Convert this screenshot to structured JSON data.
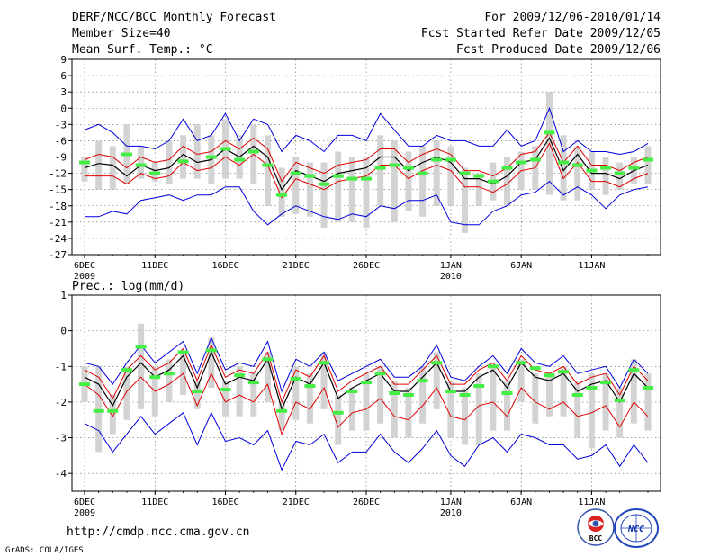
{
  "header": {
    "title": "DERF/NCC/BCC Monthly Forecast",
    "member_size": "Member Size=40",
    "variable": "Mean Surf. Temp.: °C",
    "forecast_period": "For 2009/12/06-2010/01/14",
    "start_ref": "Fcst Started Refer Date 2009/12/05",
    "produced": "Fcst Produced Date 2009/12/06"
  },
  "footer": {
    "url": "http://cmdp.ncc.cma.gov.cn",
    "grads_credit": "GrADS: COLA/IGES",
    "logo_left_text": "BCC",
    "logo_right_text": "NCC"
  },
  "colors": {
    "range_bar": "#d3d3d3",
    "mean_line": "#000000",
    "spread_line": "#e00000",
    "extreme_line": "#0000dd",
    "obs_marker": "#44ee44",
    "grid": "#666666"
  },
  "chart_data": [
    {
      "type": "line",
      "title": "Mean Surf. Temp.: °C",
      "ylabel": "°C",
      "ylim": [
        -27,
        9
      ],
      "yticks": [
        "-27",
        "-24",
        "-21",
        "-18",
        "-15",
        "-12",
        "-9",
        "-6",
        "-3",
        "0",
        "3",
        "6",
        "9"
      ],
      "xlim": [
        0,
        39
      ],
      "xticks": [
        {
          "day": 0,
          "label": "6DEC",
          "sub": "2009"
        },
        {
          "day": 5,
          "label": "11DEC",
          "sub": ""
        },
        {
          "day": 10,
          "label": "16DEC",
          "sub": ""
        },
        {
          "day": 15,
          "label": "21DEC",
          "sub": ""
        },
        {
          "day": 20,
          "label": "26DEC",
          "sub": ""
        },
        {
          "day": 26,
          "label": "1JAN",
          "sub": "2010"
        },
        {
          "day": 31,
          "label": "6JAN",
          "sub": ""
        },
        {
          "day": 36,
          "label": "11JAN",
          "sub": ""
        }
      ],
      "series": [
        {
          "name": "ensemble-mean",
          "values": [
            -11,
            -10.2,
            -10.5,
            -12.5,
            -10.5,
            -11.5,
            -11,
            -8.5,
            -10,
            -9.5,
            -7.5,
            -9,
            -7,
            -9,
            -15,
            -11.5,
            -12.5,
            -13.5,
            -12,
            -11.5,
            -11,
            -9,
            -9,
            -11.5,
            -10,
            -9,
            -10,
            -13,
            -13,
            -14,
            -12.5,
            -10,
            -9.5,
            -5.5,
            -11.5,
            -8.5,
            -12,
            -12,
            -13,
            -11.5,
            -10.5
          ]
        },
        {
          "name": "upper-spread",
          "values": [
            -9.5,
            -8.5,
            -9,
            -11,
            -9,
            -10,
            -9.5,
            -7,
            -8.5,
            -8,
            -6,
            -7.5,
            -5.5,
            -7.5,
            -13.5,
            -10,
            -11,
            -12,
            -10.5,
            -10,
            -9.5,
            -7.5,
            -7.5,
            -10,
            -8.5,
            -7.5,
            -8.5,
            -11.5,
            -11.5,
            -12.5,
            -11,
            -8.5,
            -8,
            -4.5,
            -10,
            -7,
            -10.5,
            -10.5,
            -11.5,
            -10,
            -9
          ]
        },
        {
          "name": "lower-spread",
          "values": [
            -12.5,
            -12.5,
            -12.5,
            -14,
            -12,
            -13,
            -12.5,
            -10,
            -11.5,
            -11,
            -9,
            -10.5,
            -8.5,
            -10.5,
            -16.5,
            -13,
            -14,
            -15,
            -13.5,
            -13,
            -12.5,
            -10.5,
            -10.5,
            -13,
            -11.5,
            -10.5,
            -11.5,
            -14.5,
            -14.5,
            -15.5,
            -14,
            -11.5,
            -11,
            -6.5,
            -13,
            -10,
            -13.5,
            -13.5,
            -14.5,
            -13,
            -12
          ]
        },
        {
          "name": "ensemble-max",
          "values": [
            -4,
            -3,
            -4.5,
            -7,
            -7,
            -7.5,
            -6,
            -2,
            -6,
            -5,
            -1,
            -6,
            -2,
            -3,
            -8,
            -5,
            -6,
            -8,
            -5,
            -5,
            -6,
            -1,
            -4,
            -7,
            -7,
            -5,
            -6,
            -6,
            -7,
            -7,
            -4,
            -7,
            -6,
            0,
            -8,
            -6,
            -8,
            -8,
            -8.5,
            -8,
            -6.5
          ]
        },
        {
          "name": "ensemble-min",
          "values": [
            -20,
            -20,
            -19,
            -19.5,
            -17,
            -16.5,
            -16,
            -17,
            -16,
            -16,
            -14.5,
            -14.5,
            -19,
            -21.5,
            -19.5,
            -18,
            -19,
            -20,
            -20.5,
            -19.5,
            -20,
            -18,
            -18.5,
            -17,
            -17,
            -16,
            -21,
            -21.5,
            -21.5,
            -19,
            -18,
            -16,
            -15.5,
            -13.5,
            -16,
            -14.5,
            -16,
            -18.5,
            -16,
            -15,
            -14.5
          ]
        },
        {
          "name": "range-top",
          "values": [
            -9,
            -6,
            -7,
            -3,
            -7,
            -10,
            -6,
            -5,
            -3,
            -5,
            -2,
            -5,
            -3,
            -5,
            -11,
            -9,
            -10,
            -10,
            -8,
            -9,
            -9,
            -5,
            -6,
            -8,
            -7,
            -6,
            -7,
            -11,
            -12,
            -10,
            -9,
            -8,
            -7,
            3,
            -5,
            -7,
            -8,
            -9,
            -10,
            -9,
            -7
          ]
        },
        {
          "name": "range-bottom",
          "values": [
            -13.5,
            -15,
            -15,
            -14,
            -13,
            -13.5,
            -14,
            -13,
            -13,
            -14,
            -13,
            -13,
            -14,
            -18,
            -20,
            -19.5,
            -20,
            -22,
            -21,
            -21,
            -22,
            -18,
            -21,
            -19,
            -20,
            -18,
            -18,
            -23,
            -18,
            -17,
            -18,
            -15,
            -15,
            -16,
            -17,
            -17,
            -15,
            -16,
            -15,
            -14,
            -14
          ]
        },
        {
          "name": "observed",
          "values": [
            -10,
            null,
            null,
            -8.5,
            -10.5,
            -12,
            null,
            -9.8,
            null,
            -9,
            -7.5,
            -9.5,
            -8,
            -10.5,
            -16,
            -12,
            -12.5,
            -14,
            -12.5,
            -13,
            -13,
            -11,
            -10.5,
            -11,
            -12,
            -9.5,
            -9.5,
            -12,
            -12.5,
            -13.5,
            -11,
            -10,
            -9.5,
            -4.5,
            -10,
            -10.5,
            -11.5,
            -11,
            -12,
            -11,
            -9.5
          ]
        }
      ]
    },
    {
      "type": "line",
      "title": "Prec.: log(mm/d)",
      "ylabel": "log(mm/d)",
      "ylim": [
        -4.5,
        1
      ],
      "yticks": [
        "-4",
        "-3",
        "-2",
        "-1",
        "0",
        "1"
      ],
      "xlim": [
        0,
        39
      ],
      "xticks": [
        {
          "day": 0,
          "label": "6DEC",
          "sub": "2009"
        },
        {
          "day": 5,
          "label": "11DEC",
          "sub": ""
        },
        {
          "day": 10,
          "label": "16DEC",
          "sub": ""
        },
        {
          "day": 15,
          "label": "21DEC",
          "sub": ""
        },
        {
          "day": 20,
          "label": "26DEC",
          "sub": ""
        },
        {
          "day": 26,
          "label": "1JAN",
          "sub": "2010"
        },
        {
          "day": 31,
          "label": "6JAN",
          "sub": ""
        },
        {
          "day": 36,
          "label": "11JAN",
          "sub": ""
        }
      ],
      "series": [
        {
          "name": "ensemble-mean",
          "values": [
            -1.3,
            -1.5,
            -2.1,
            -1.3,
            -0.9,
            -1.3,
            -1.1,
            -0.7,
            -1.6,
            -0.6,
            -1.5,
            -1.3,
            -1.4,
            -0.8,
            -2.2,
            -1.3,
            -1.5,
            -0.9,
            -1.9,
            -1.6,
            -1.4,
            -1.2,
            -1.7,
            -1.7,
            -1.3,
            -0.9,
            -1.7,
            -1.7,
            -1.3,
            -1.1,
            -1.6,
            -0.9,
            -1.3,
            -1.4,
            -1.2,
            -1.7,
            -1.5,
            -1.4,
            -2.0,
            -1.2,
            -1.6
          ]
        },
        {
          "name": "upper-spread",
          "values": [
            -1.1,
            -1.3,
            -1.9,
            -1.1,
            -0.7,
            -1.1,
            -0.9,
            -0.5,
            -1.4,
            -0.4,
            -1.3,
            -1.1,
            -1.2,
            -0.6,
            -2.0,
            -1.1,
            -1.3,
            -0.7,
            -1.7,
            -1.4,
            -1.2,
            -1.0,
            -1.5,
            -1.5,
            -1.1,
            -0.7,
            -1.5,
            -1.5,
            -1.1,
            -0.9,
            -1.4,
            -0.7,
            -1.1,
            -1.2,
            -1.0,
            -1.5,
            -1.3,
            -1.2,
            -1.8,
            -1.0,
            -1.4
          ]
        },
        {
          "name": "lower-spread",
          "values": [
            -1.5,
            -1.8,
            -2.4,
            -1.7,
            -1.3,
            -1.7,
            -1.5,
            -1.2,
            -2.1,
            -1.2,
            -2.0,
            -1.8,
            -2.0,
            -1.5,
            -2.9,
            -2.0,
            -2.2,
            -1.6,
            -2.7,
            -2.3,
            -2.2,
            -1.9,
            -2.4,
            -2.5,
            -2.1,
            -1.6,
            -2.4,
            -2.5,
            -2.1,
            -2.0,
            -2.4,
            -1.6,
            -2.0,
            -2.2,
            -2.0,
            -2.4,
            -2.3,
            -2.1,
            -2.7,
            -2.0,
            -2.4
          ]
        },
        {
          "name": "ensemble-max",
          "values": [
            -0.9,
            -1.0,
            -1.5,
            -0.9,
            -0.4,
            -0.9,
            -0.6,
            -0.3,
            -1.2,
            -0.2,
            -1.1,
            -0.9,
            -1.0,
            -0.3,
            -1.7,
            -0.8,
            -1.0,
            -0.6,
            -1.4,
            -1.2,
            -1.0,
            -0.8,
            -1.3,
            -1.3,
            -1.0,
            -0.4,
            -1.3,
            -1.4,
            -1.0,
            -0.7,
            -1.2,
            -0.5,
            -0.9,
            -1.0,
            -0.7,
            -1.2,
            -1.1,
            -1.0,
            -1.6,
            -0.8,
            -1.2
          ]
        },
        {
          "name": "ensemble-min",
          "values": [
            -2.6,
            -2.8,
            -3.4,
            -2.9,
            -2.4,
            -2.9,
            -2.6,
            -2.3,
            -3.2,
            -2.3,
            -3.1,
            -3.0,
            -3.2,
            -2.8,
            -3.9,
            -3.1,
            -3.2,
            -2.9,
            -3.7,
            -3.4,
            -3.4,
            -2.9,
            -3.4,
            -3.7,
            -3.3,
            -2.8,
            -3.5,
            -3.8,
            -3.2,
            -3.0,
            -3.4,
            -2.9,
            -3.0,
            -3.2,
            -3.2,
            -3.6,
            -3.5,
            -3.2,
            -3.8,
            -3.2,
            -3.7
          ]
        },
        {
          "name": "range-top",
          "values": [
            -1.0,
            -1.0,
            -1.8,
            -1.0,
            0.2,
            -1.0,
            -0.8,
            -0.6,
            -1.4,
            -0.2,
            -1.4,
            -1.0,
            -1.2,
            -0.6,
            -2.0,
            -1.0,
            -1.2,
            -0.6,
            -1.8,
            -1.6,
            -1.2,
            -1.0,
            -1.4,
            -1.6,
            -1.0,
            -0.6,
            -1.4,
            -1.6,
            -1.2,
            -1.0,
            -1.4,
            -0.8,
            -1.2,
            -1.2,
            -1.0,
            -1.4,
            -1.2,
            -1.2,
            -1.6,
            -0.8,
            -1.2
          ]
        },
        {
          "name": "range-bottom",
          "values": [
            -2.0,
            -3.4,
            -2.9,
            -2.5,
            -2.2,
            -2.4,
            -2.0,
            -1.8,
            -2.2,
            -1.6,
            -2.4,
            -2.4,
            -2.4,
            -2.0,
            -2.8,
            -2.5,
            -2.6,
            -2.2,
            -3.2,
            -2.8,
            -2.8,
            -2.6,
            -3.0,
            -3.0,
            -2.6,
            -2.2,
            -3.0,
            -3.2,
            -3.2,
            -2.8,
            -2.8,
            -2.0,
            -2.6,
            -2.4,
            -2.4,
            -3.0,
            -3.3,
            -2.8,
            -3.0,
            -2.6,
            -2.8
          ]
        },
        {
          "name": "observed",
          "values": [
            -1.5,
            -2.25,
            -2.25,
            -1.1,
            -0.45,
            -1.3,
            -1.2,
            -0.6,
            -1.7,
            -0.55,
            -1.65,
            -1.25,
            -1.45,
            -0.8,
            -2.25,
            -1.35,
            -1.55,
            -0.9,
            -2.3,
            -1.7,
            -1.45,
            -1.2,
            -1.75,
            -1.8,
            -1.4,
            -0.9,
            -1.7,
            -1.8,
            -1.55,
            -1.0,
            -1.75,
            -0.9,
            -1.05,
            -1.25,
            -1.15,
            -1.8,
            -1.6,
            -1.45,
            -1.95,
            -1.1,
            -1.6
          ]
        }
      ]
    }
  ]
}
